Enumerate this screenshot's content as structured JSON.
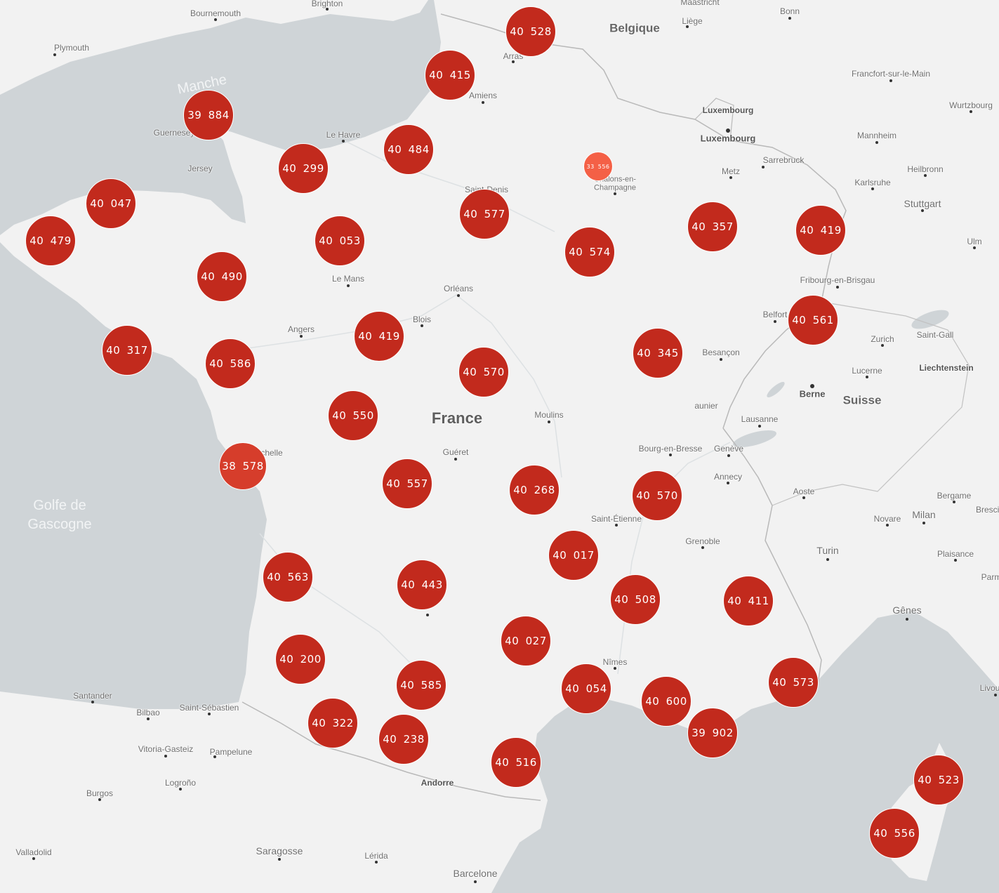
{
  "colors": {
    "sea": "#cfd4d7",
    "land": "#f2f2f2",
    "marker": "#c22a1d",
    "marker_light": "#d63d2b",
    "marker_small": "#f46046"
  },
  "labels": {
    "bournemouth": "Bournemouth",
    "brighton": "Brighton",
    "maastricht": "Maastricht",
    "bonn": "Bonn",
    "belgique": "Belgique",
    "liege": "Liège",
    "plymouth": "Plymouth",
    "manche": "Manche",
    "arras": "Arras",
    "amiens": "Amiens",
    "francfort": "Francfort-sur-le-Main",
    "luxembourg_country": "Luxembourg",
    "luxembourg_city": "Luxembourg",
    "wurtzbourg": "Wurtzbourg",
    "guernesey": "Guernesey",
    "le_havre": "Le Havre",
    "mannheim": "Mannheim",
    "jersey": "Jersey",
    "sarrebruck": "Sarrebruck",
    "metz": "Metz",
    "heilbronn": "Heilbronn",
    "saint_denis": "Saint-Denis",
    "chalons1": "Châlons-en-",
    "chalons2": "Champagne",
    "karlsruhe": "Karlsruhe",
    "stuttgart": "Stuttgart",
    "ulm": "Ulm",
    "le_mans": "Le Mans",
    "fribourg": "Fribourg-en-Brisgau",
    "orleans": "Orléans",
    "angers": "Angers",
    "blois": "Blois",
    "belfort": "Belfort",
    "saint_gall": "Saint-Gall",
    "zurich": "Zurich",
    "besancon": "Besançon",
    "lucerne": "Lucerne",
    "liechtenstein": "Liechtenstein",
    "berne": "Berne",
    "suisse": "Suisse",
    "france": "France",
    "moulins": "Moulins",
    "aunier": "aunier",
    "lausanne": "Lausanne",
    "la_rochelle": "chelle",
    "gueret": "Guéret",
    "bourg": "Bourg-en-Bresse",
    "geneve": "Genève",
    "annecy": "Annecy",
    "golfe": "Golfe de\nGascogne",
    "aoste": "Aoste",
    "bergame": "Bergame",
    "brescia": "Brescia",
    "saint_etienne": "Saint-Étienne",
    "novare": "Novare",
    "milan": "Milan",
    "grenoble": "Grenoble",
    "turin": "Turin",
    "plaisance": "Plaisance",
    "parme": "Parm",
    "genes": "Gênes",
    "nimes": "Nîmes",
    "santander": "Santander",
    "bilbao": "Bilbao",
    "saint_sebastien": "Saint-Sébastien",
    "livourne": "Livou",
    "vitoria": "Vitoria-Gasteiz",
    "pampelune": "Pampelune",
    "logrono": "Logroño",
    "andorre": "Andorre",
    "burgos": "Burgos",
    "valladolid": "Valladolid",
    "saragosse": "Saragosse",
    "lerida": "Lérida",
    "barcelone": "Barcelone"
  },
  "markers": [
    {
      "label": "40 528",
      "style": "normal"
    },
    {
      "label": "40 415",
      "style": "normal"
    },
    {
      "label": "39 884",
      "style": "normal"
    },
    {
      "label": "40 484",
      "style": "normal"
    },
    {
      "label": "40 299",
      "style": "normal"
    },
    {
      "label": "33 556",
      "style": "small"
    },
    {
      "label": "40 047",
      "style": "normal"
    },
    {
      "label": "40 577",
      "style": "normal"
    },
    {
      "label": "40 479",
      "style": "normal"
    },
    {
      "label": "40 053",
      "style": "normal"
    },
    {
      "label": "40 357",
      "style": "normal"
    },
    {
      "label": "40 419",
      "style": "normal"
    },
    {
      "label": "40 574",
      "style": "normal"
    },
    {
      "label": "40 490",
      "style": "normal"
    },
    {
      "label": "40 561",
      "style": "normal"
    },
    {
      "label": "40 419",
      "style": "normal"
    },
    {
      "label": "40 317",
      "style": "normal"
    },
    {
      "label": "40 345",
      "style": "normal"
    },
    {
      "label": "40 586",
      "style": "normal"
    },
    {
      "label": "40 570",
      "style": "normal"
    },
    {
      "label": "40 550",
      "style": "normal"
    },
    {
      "label": "38 578",
      "style": "mid"
    },
    {
      "label": "40 557",
      "style": "normal"
    },
    {
      "label": "40 268",
      "style": "normal"
    },
    {
      "label": "40 570",
      "style": "normal"
    },
    {
      "label": "40 017",
      "style": "normal"
    },
    {
      "label": "40 563",
      "style": "normal"
    },
    {
      "label": "40 443",
      "style": "normal"
    },
    {
      "label": "40 508",
      "style": "normal"
    },
    {
      "label": "40 411",
      "style": "normal"
    },
    {
      "label": "40 027",
      "style": "normal"
    },
    {
      "label": "40 200",
      "style": "normal"
    },
    {
      "label": "40 585",
      "style": "normal"
    },
    {
      "label": "40 573",
      "style": "normal"
    },
    {
      "label": "40 054",
      "style": "normal"
    },
    {
      "label": "40 600",
      "style": "normal"
    },
    {
      "label": "40 322",
      "style": "normal"
    },
    {
      "label": "40 238",
      "style": "normal"
    },
    {
      "label": "39 902",
      "style": "normal"
    },
    {
      "label": "40 516",
      "style": "normal"
    },
    {
      "label": "40 523",
      "style": "normal"
    },
    {
      "label": "40 556",
      "style": "normal"
    }
  ]
}
